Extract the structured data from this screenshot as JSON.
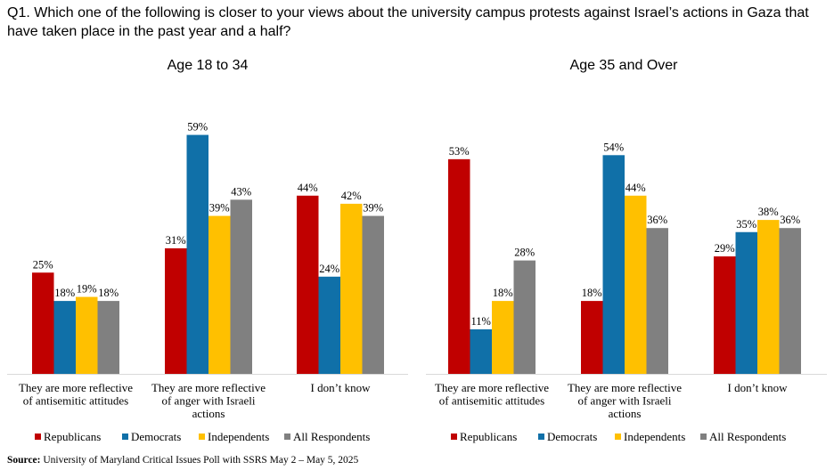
{
  "question": "Q1. Which one of the following is closer to your views about the university campus protests against Israel’s actions in Gaza that have taken place in the past year and a half?",
  "source_label": "Source:",
  "source_text": "University of Maryland Critical Issues Poll with SSRS May 2 – May 5, 2025",
  "colors": {
    "Republicans": "#c00000",
    "Democrats": "#1070a8",
    "Independents": "#ffc000",
    "All Respondents": "#808080"
  },
  "chart_data": [
    {
      "type": "bar",
      "title": "Age 18 to 34",
      "categories": [
        [
          "They are more reflective",
          "of antisemitic attitudes"
        ],
        [
          "They are more reflective",
          "of anger with Israeli",
          "actions"
        ],
        [
          "I don’t know"
        ]
      ],
      "series": [
        {
          "name": "Republicans",
          "values": [
            25,
            31,
            44
          ],
          "labels": [
            "25%",
            "31%",
            "44%"
          ]
        },
        {
          "name": "Democrats",
          "values": [
            18,
            59,
            24
          ],
          "labels": [
            "18%",
            "59%",
            "24%"
          ]
        },
        {
          "name": "Independents",
          "values": [
            19,
            39,
            42
          ],
          "labels": [
            "19%",
            "39%",
            "42%"
          ]
        },
        {
          "name": "All Respondents",
          "values": [
            18,
            43,
            39
          ],
          "labels": [
            "18%",
            "43%",
            "39%"
          ]
        }
      ],
      "ylim": [
        0,
        60
      ],
      "grid": false,
      "legend": "bottom"
    },
    {
      "type": "bar",
      "title": "Age 35 and Over",
      "categories": [
        [
          "They are more reflective",
          "of antisemitic attitudes"
        ],
        [
          "They are more reflective",
          "of anger with Israeli",
          "actions"
        ],
        [
          "I don’t know"
        ]
      ],
      "series": [
        {
          "name": "Republicans",
          "values": [
            53,
            18,
            29
          ],
          "labels": [
            "53%",
            "18%",
            "29%"
          ]
        },
        {
          "name": "Democrats",
          "values": [
            11,
            54,
            35
          ],
          "labels": [
            "11%",
            "54%",
            "35%"
          ]
        },
        {
          "name": "Independents",
          "values": [
            18,
            44,
            38
          ],
          "labels": [
            "18%",
            "44%",
            "38%"
          ]
        },
        {
          "name": "All Respondents",
          "values": [
            28,
            36,
            36
          ],
          "labels": [
            "28%",
            "36%",
            "36%"
          ]
        }
      ],
      "ylim": [
        0,
        60
      ],
      "grid": false,
      "legend": "bottom"
    }
  ]
}
